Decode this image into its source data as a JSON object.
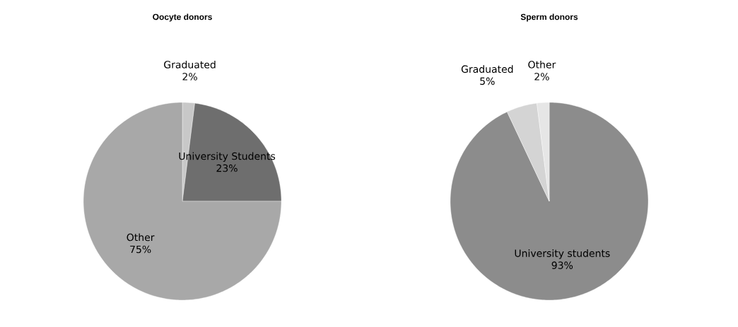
{
  "chart_data": [
    {
      "type": "pie",
      "title": "Oocyte donors",
      "categories": [
        "Graduated",
        "University Students",
        "Other"
      ],
      "values": [
        2,
        23,
        75
      ],
      "colors": [
        "#c8c8c8",
        "#6e6e6e",
        "#a8a8a8"
      ],
      "value_labels": [
        "2%",
        "23%",
        "75%"
      ]
    },
    {
      "type": "pie",
      "title": "Sperm donors",
      "categories": [
        "University students",
        "Graduated",
        "Other"
      ],
      "values": [
        93,
        5,
        2
      ],
      "colors": [
        "#8c8c8c",
        "#d4d4d4",
        "#e6e6e6"
      ],
      "value_labels": [
        "93%",
        "5%",
        "2%"
      ]
    }
  ]
}
